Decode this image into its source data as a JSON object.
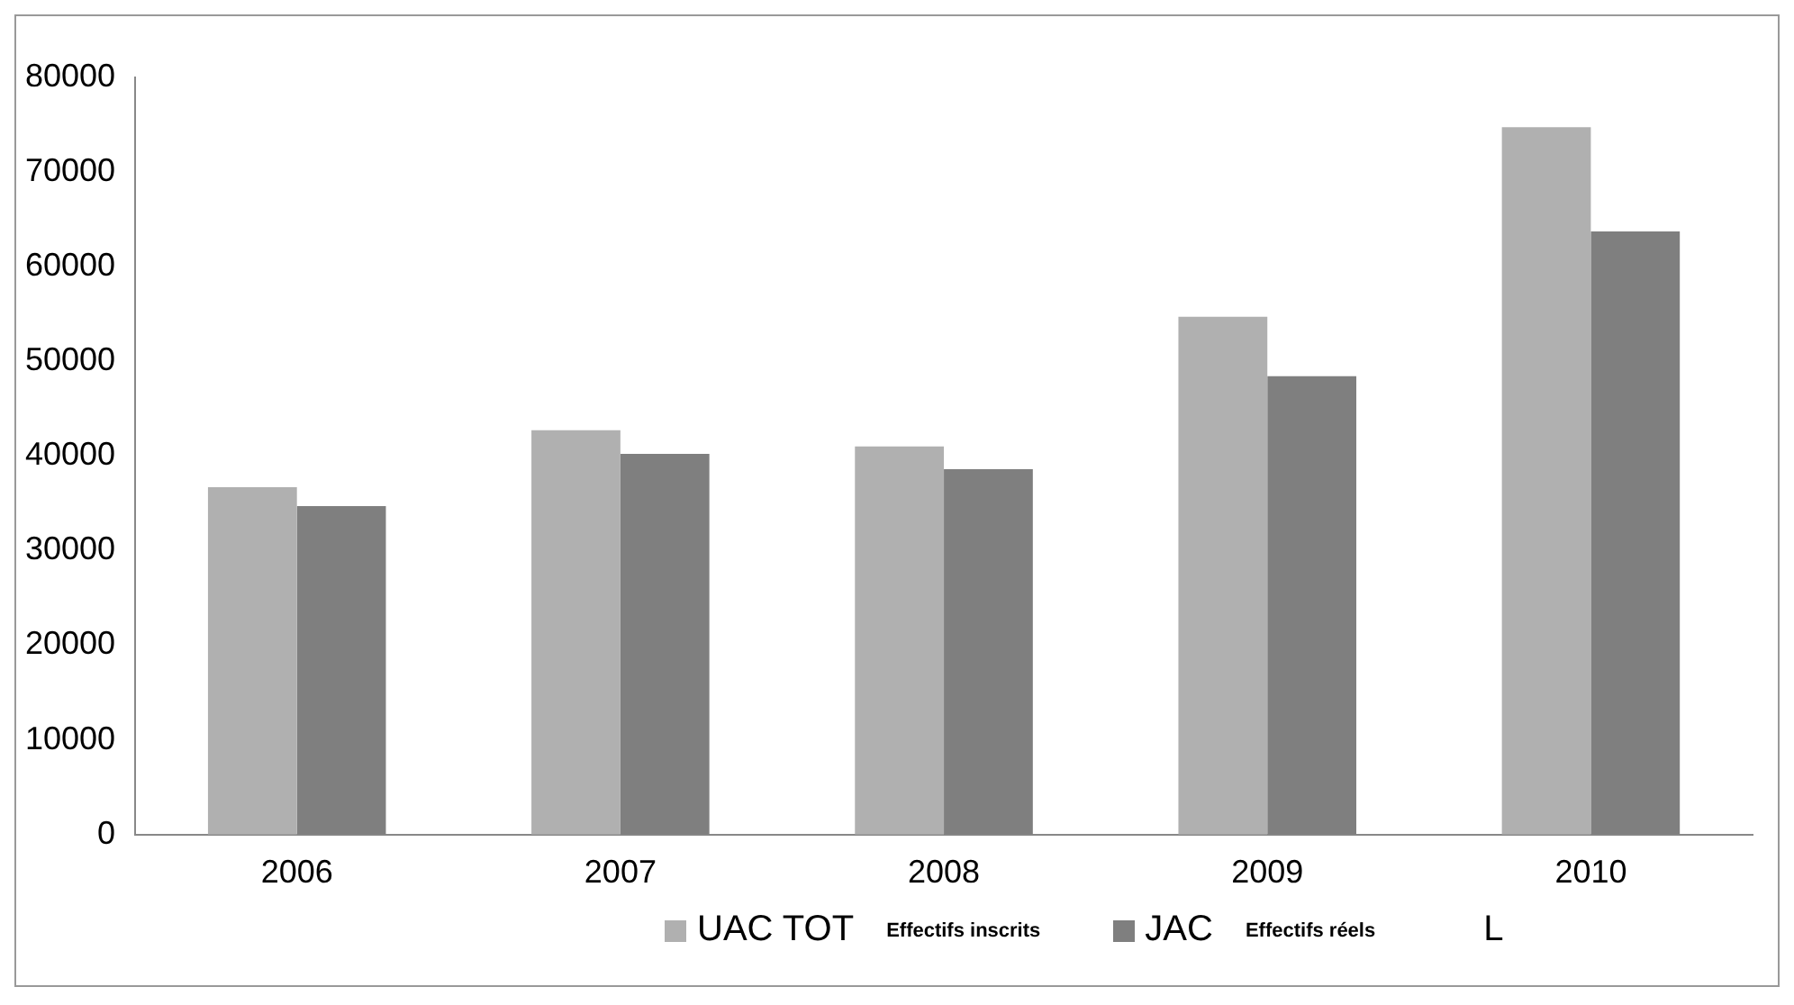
{
  "chart_data": {
    "type": "bar",
    "categories": [
      "2006",
      "2007",
      "2008",
      "2009",
      "2010"
    ],
    "series": [
      {
        "name": "UAC TOT",
        "color": "#b0b0b0",
        "values": [
          36700,
          42700,
          41000,
          54700,
          74700
        ]
      },
      {
        "name": "JAC",
        "color": "#7f7f7f",
        "values": [
          34700,
          40200,
          38600,
          48400,
          63700
        ]
      }
    ],
    "ylim": [
      0,
      80000
    ],
    "yticks": [
      0,
      10000,
      20000,
      30000,
      40000,
      50000,
      60000,
      70000,
      80000
    ],
    "grid": false,
    "legend": "bottom",
    "annotations": [
      "Effectifs inscrits",
      "Effectifs réels",
      "L"
    ]
  }
}
